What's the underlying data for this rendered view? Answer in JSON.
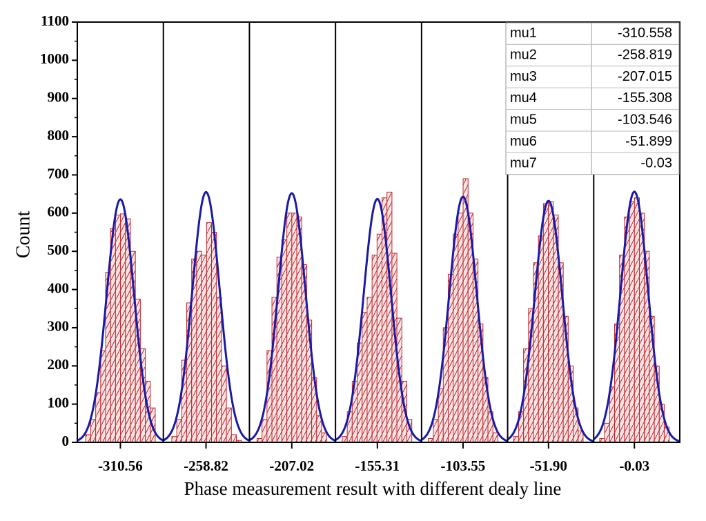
{
  "chart_data": {
    "type": "histogram",
    "xlabel": "Phase measurement result with different dealy line",
    "ylabel": "Count",
    "xlim": [
      -336.6,
      27.4
    ],
    "ylim": [
      0,
      1100
    ],
    "yticks": [
      0,
      100,
      200,
      300,
      400,
      500,
      600,
      700,
      800,
      900,
      1000,
      1100
    ],
    "xticks": [
      {
        "value": -310.56,
        "label": "-310.56"
      },
      {
        "value": -258.82,
        "label": "-258.82"
      },
      {
        "value": -207.02,
        "label": "-207.02"
      },
      {
        "value": -155.31,
        "label": "-155.31"
      },
      {
        "value": -103.55,
        "label": "-103.55"
      },
      {
        "value": -51.9,
        "label": "-51.90"
      },
      {
        "value": -0.03,
        "label": "-0.03"
      }
    ],
    "dividers": [
      -284.6,
      -232.6,
      -180.6,
      -128.6,
      -76.6,
      -24.6
    ],
    "color": "#c0272d",
    "fit_color": "#1a1aa6",
    "series": [
      {
        "bins": [
          -331.5,
          -328.5,
          -325.5,
          -322.5,
          -319.5,
          -316.5,
          -313.5,
          -310.5,
          -307.5,
          -304.5,
          -301.5,
          -298.5,
          -295.5,
          -292.5,
          -289.5
        ],
        "counts": [
          20,
          60,
          130,
          240,
          445,
          560,
          595,
          598,
          585,
          500,
          375,
          245,
          160,
          90
        ],
        "fit_sigma": 8.3,
        "fit_amplitude": 636
      },
      {
        "bins": [
          -279.5,
          -276.5,
          -273.5,
          -270.5,
          -267.5,
          -264.5,
          -261.5,
          -258.5,
          -255.5,
          -252.5,
          -249.5,
          -246.5,
          -243.5,
          -240.5,
          -237.5
        ],
        "counts": [
          15,
          60,
          215,
          365,
          480,
          500,
          490,
          575,
          550,
          380,
          200,
          90,
          20,
          5
        ],
        "fit_sigma": 8.3,
        "fit_amplitude": 655
      },
      {
        "bins": [
          -228,
          -225,
          -222,
          -219,
          -216,
          -213,
          -210,
          -207,
          -204,
          -201,
          -198,
          -195,
          -192,
          -189,
          -186
        ],
        "counts": [
          10,
          60,
          240,
          380,
          485,
          530,
          600,
          600,
          590,
          465,
          320,
          170,
          70,
          25
        ],
        "fit_sigma": 8.3,
        "fit_amplitude": 652
      },
      {
        "bins": [
          -176.5,
          -173.5,
          -170.5,
          -167.5,
          -164.5,
          -161.5,
          -158.5,
          -155.5,
          -152.5,
          -149.5,
          -146.5,
          -143.5,
          -140.5,
          -137.5,
          -134.5
        ],
        "counts": [
          15,
          80,
          160,
          260,
          340,
          380,
          490,
          545,
          640,
          655,
          495,
          325,
          160,
          60
        ],
        "fit_sigma": 8.3,
        "fit_amplitude": 637
      },
      {
        "bins": [
          -124.5,
          -121.5,
          -118.5,
          -115.5,
          -112.5,
          -109.5,
          -106.5,
          -103.5,
          -100.5,
          -97.5,
          -94.5,
          -91.5,
          -88.5,
          -85.5,
          -82.5
        ],
        "counts": [
          10,
          60,
          140,
          300,
          440,
          545,
          600,
          690,
          600,
          480,
          310,
          170,
          80,
          25
        ],
        "fit_sigma": 8.3,
        "fit_amplitude": 643
      },
      {
        "bins": [
          -73,
          -70,
          -67,
          -64,
          -61,
          -58,
          -55,
          -52,
          -49,
          -46,
          -43,
          -40,
          -37,
          -34,
          -31
        ],
        "counts": [
          15,
          80,
          245,
          350,
          470,
          540,
          625,
          630,
          595,
          470,
          330,
          200,
          90,
          30
        ],
        "fit_sigma": 8.3,
        "fit_amplitude": 632
      },
      {
        "bins": [
          -21,
          -18,
          -15,
          -12,
          -9,
          -6,
          -3,
          0,
          3,
          6,
          9,
          12,
          15,
          18,
          21
        ],
        "counts": [
          10,
          50,
          145,
          310,
          490,
          590,
          630,
          640,
          600,
          500,
          330,
          200,
          100,
          40
        ],
        "fit_sigma": 8.3,
        "fit_amplitude": 656
      }
    ],
    "table": {
      "rows": [
        [
          "mu1",
          -310.558
        ],
        [
          "mu2",
          -258.819
        ],
        [
          "mu3",
          -207.015
        ],
        [
          "mu4",
          -155.308
        ],
        [
          "mu5",
          -103.546
        ],
        [
          "mu6",
          -51.899
        ],
        [
          "mu7",
          -0.03
        ]
      ]
    }
  }
}
